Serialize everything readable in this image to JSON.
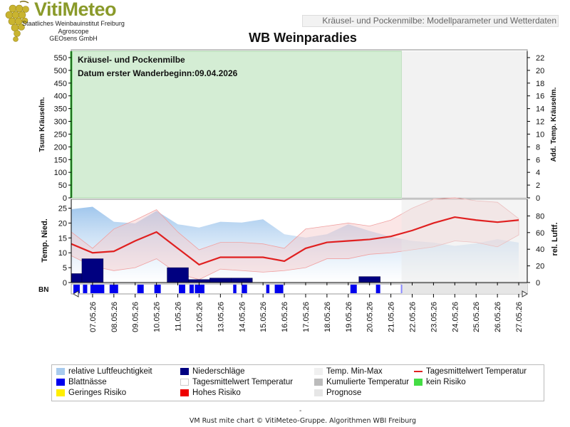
{
  "header": {
    "logo_title": "VitiMeteo",
    "logo_lines": [
      "Staatliches Weinbauinstitut Freiburg",
      "Agroscope",
      "GEOsens GmbH"
    ],
    "model_tag": "Kräusel- und Pockenmilbe: Modellparameter und Wetterdaten",
    "station_title": "WB Weinparadies"
  },
  "chart_data": [
    {
      "type": "area",
      "panel": "top",
      "annotations": [
        "Kräusel- und Pockenmilbe",
        "Datum  erster Wanderbeginn:09.04.2026"
      ],
      "ylabel_left": "Tsum Kräuselm.",
      "ylabel_right": "Add. Temp. Kräuselm.",
      "yticks_left": [
        0,
        50,
        100,
        150,
        200,
        250,
        300,
        350,
        400,
        450,
        500,
        550
      ],
      "ylim_left": [
        0,
        575
      ],
      "yticks_right": [
        0,
        2,
        4,
        6,
        8,
        10,
        12,
        14,
        16,
        18,
        20,
        22
      ],
      "ylim_right": [
        0,
        23
      ],
      "risk_band": "kein Risiko",
      "risk_color": "#d4edd4",
      "forecast_start_index": 14.5
    },
    {
      "type": "line",
      "panel": "middle",
      "ylabel_left": "Temp. Nied.",
      "ylabel_right": "rel. Luftf.",
      "yticks_left": [
        0,
        5,
        10,
        15,
        20,
        25
      ],
      "ylim_left": [
        0,
        28
      ],
      "yticks_right": [
        0,
        20,
        40,
        60,
        80
      ],
      "ylim_right": [
        0,
        100
      ],
      "x": [
        "07.05.26",
        "08.05.26",
        "09.05.26",
        "10.05.26",
        "11.05.26",
        "12.05.26",
        "13.05.26",
        "14.05.26",
        "15.05.26",
        "16.05.26",
        "17.05.26",
        "18.05.26",
        "19.05.26",
        "20.05.26",
        "21.05.26",
        "22.05.26",
        "23.05.26",
        "24.05.26",
        "25.05.26",
        "26.05.26",
        "27.05.26"
      ],
      "x_start": -1,
      "series": [
        {
          "name": "Tagesmittelwert Temperatur",
          "color": "#e02020",
          "x": [
            -1,
            0,
            1,
            2,
            3,
            4,
            5,
            6,
            7,
            8,
            9,
            10,
            11,
            12,
            13,
            14,
            15,
            16,
            17,
            18,
            19,
            20
          ],
          "values": [
            13,
            10,
            10.5,
            14,
            17,
            11.5,
            6,
            8.5,
            8.5,
            8.5,
            7.2,
            11.5,
            13.5,
            14,
            14.5,
            15.5,
            17.5,
            20,
            22,
            21,
            20.3,
            21
          ]
        },
        {
          "name": "Temp. Min-Max",
          "color": "#f6c8c8",
          "x": [
            -1,
            0,
            1,
            2,
            3,
            4,
            5,
            6,
            7,
            8,
            9,
            10,
            11,
            12,
            13,
            14,
            15,
            16,
            17,
            18,
            19,
            20
          ],
          "min": [
            9,
            5.5,
            4,
            5,
            8,
            3,
            1,
            4.5,
            4,
            3.5,
            4,
            5,
            8,
            8,
            9.5,
            10,
            11,
            12,
            14,
            13.5,
            12,
            16
          ],
          "max": [
            17,
            11.5,
            18,
            21,
            24.5,
            17,
            11,
            13.5,
            13.5,
            13,
            11.5,
            18,
            19,
            20,
            19,
            21,
            25,
            28,
            28.5,
            27.5,
            27,
            21.5
          ]
        },
        {
          "name": "relative Luftfeuchtigkeit",
          "color": "#9cc4ec",
          "x": [
            -1,
            0,
            1,
            2,
            3,
            4,
            5,
            6,
            7,
            8,
            9,
            10,
            11,
            12,
            13,
            14,
            15,
            16,
            17,
            18,
            19,
            20
          ],
          "values": [
            88,
            91,
            73,
            71,
            86,
            70,
            66,
            73,
            72,
            76,
            58,
            54,
            58,
            70,
            62,
            55,
            50,
            48,
            44,
            47,
            52,
            48
          ]
        },
        {
          "name": "Niederschläge",
          "color": "#000080",
          "x": [
            -1,
            0,
            1,
            2,
            3,
            4,
            5,
            6,
            7,
            8,
            9,
            10,
            11,
            12,
            13,
            14,
            15,
            16,
            17,
            18,
            19,
            20
          ],
          "values": [
            3,
            8,
            0,
            0,
            0,
            5,
            1,
            1.5,
            1.5,
            0,
            0,
            0,
            0,
            0,
            2,
            0,
            0,
            0,
            0,
            0,
            0,
            0
          ]
        }
      ]
    },
    {
      "type": "bar",
      "panel": "BN",
      "label": "BN",
      "series": [
        {
          "name": "Blattnässe",
          "color": "#0000ee",
          "intervals": [
            [
              -0.9,
              -0.6
            ],
            [
              -0.45,
              -0.25
            ],
            [
              -0.1,
              0.55
            ],
            [
              0.8,
              1.2
            ],
            [
              2.1,
              2.4
            ],
            [
              2.9,
              3.2
            ],
            [
              4.05,
              4.35
            ],
            [
              4.55,
              4.75
            ],
            [
              4.8,
              5.25
            ],
            [
              6.6,
              6.75
            ],
            [
              7.0,
              7.25
            ],
            [
              8.15,
              8.3
            ],
            [
              8.55,
              8.95
            ],
            [
              12.1,
              12.4
            ],
            [
              13.3,
              13.5
            ]
          ]
        }
      ]
    }
  ],
  "legend": {
    "items": [
      {
        "label": "relative Luftfeuchtigkeit",
        "color": "#a8cbee",
        "kind": "swatch"
      },
      {
        "label": "Niederschläge",
        "color": "#000080",
        "kind": "swatch"
      },
      {
        "label": "Temp. Min-Max",
        "color": "#f0f0f0",
        "kind": "swatch"
      },
      {
        "label": "Tagesmittelwert Temperatur",
        "color": "#e02020",
        "kind": "line"
      },
      {
        "label": "Blattnässe",
        "color": "#0000ee",
        "kind": "swatch"
      },
      {
        "label": "Tagesmittelwert Temperatur",
        "color": "#ffffff",
        "kind": "swatch"
      },
      {
        "label": "Kumulierte Temperatur",
        "color": "#bbbbbb",
        "kind": "swatch"
      },
      {
        "label": "kein Risiko",
        "color": "#44dd44",
        "kind": "swatch"
      },
      {
        "label": "Geringes Risiko",
        "color": "#ffee00",
        "kind": "swatch"
      },
      {
        "label": "Hohes Risiko",
        "color": "#ee0000",
        "kind": "swatch"
      },
      {
        "label": "Prognose",
        "color": "#e6e6e6",
        "kind": "swatch"
      }
    ]
  },
  "footer": {
    "dash": "-",
    "credit": "VM Rust mite chart © VitiMeteo-Gruppe. Algorithmen WBI Freiburg"
  }
}
